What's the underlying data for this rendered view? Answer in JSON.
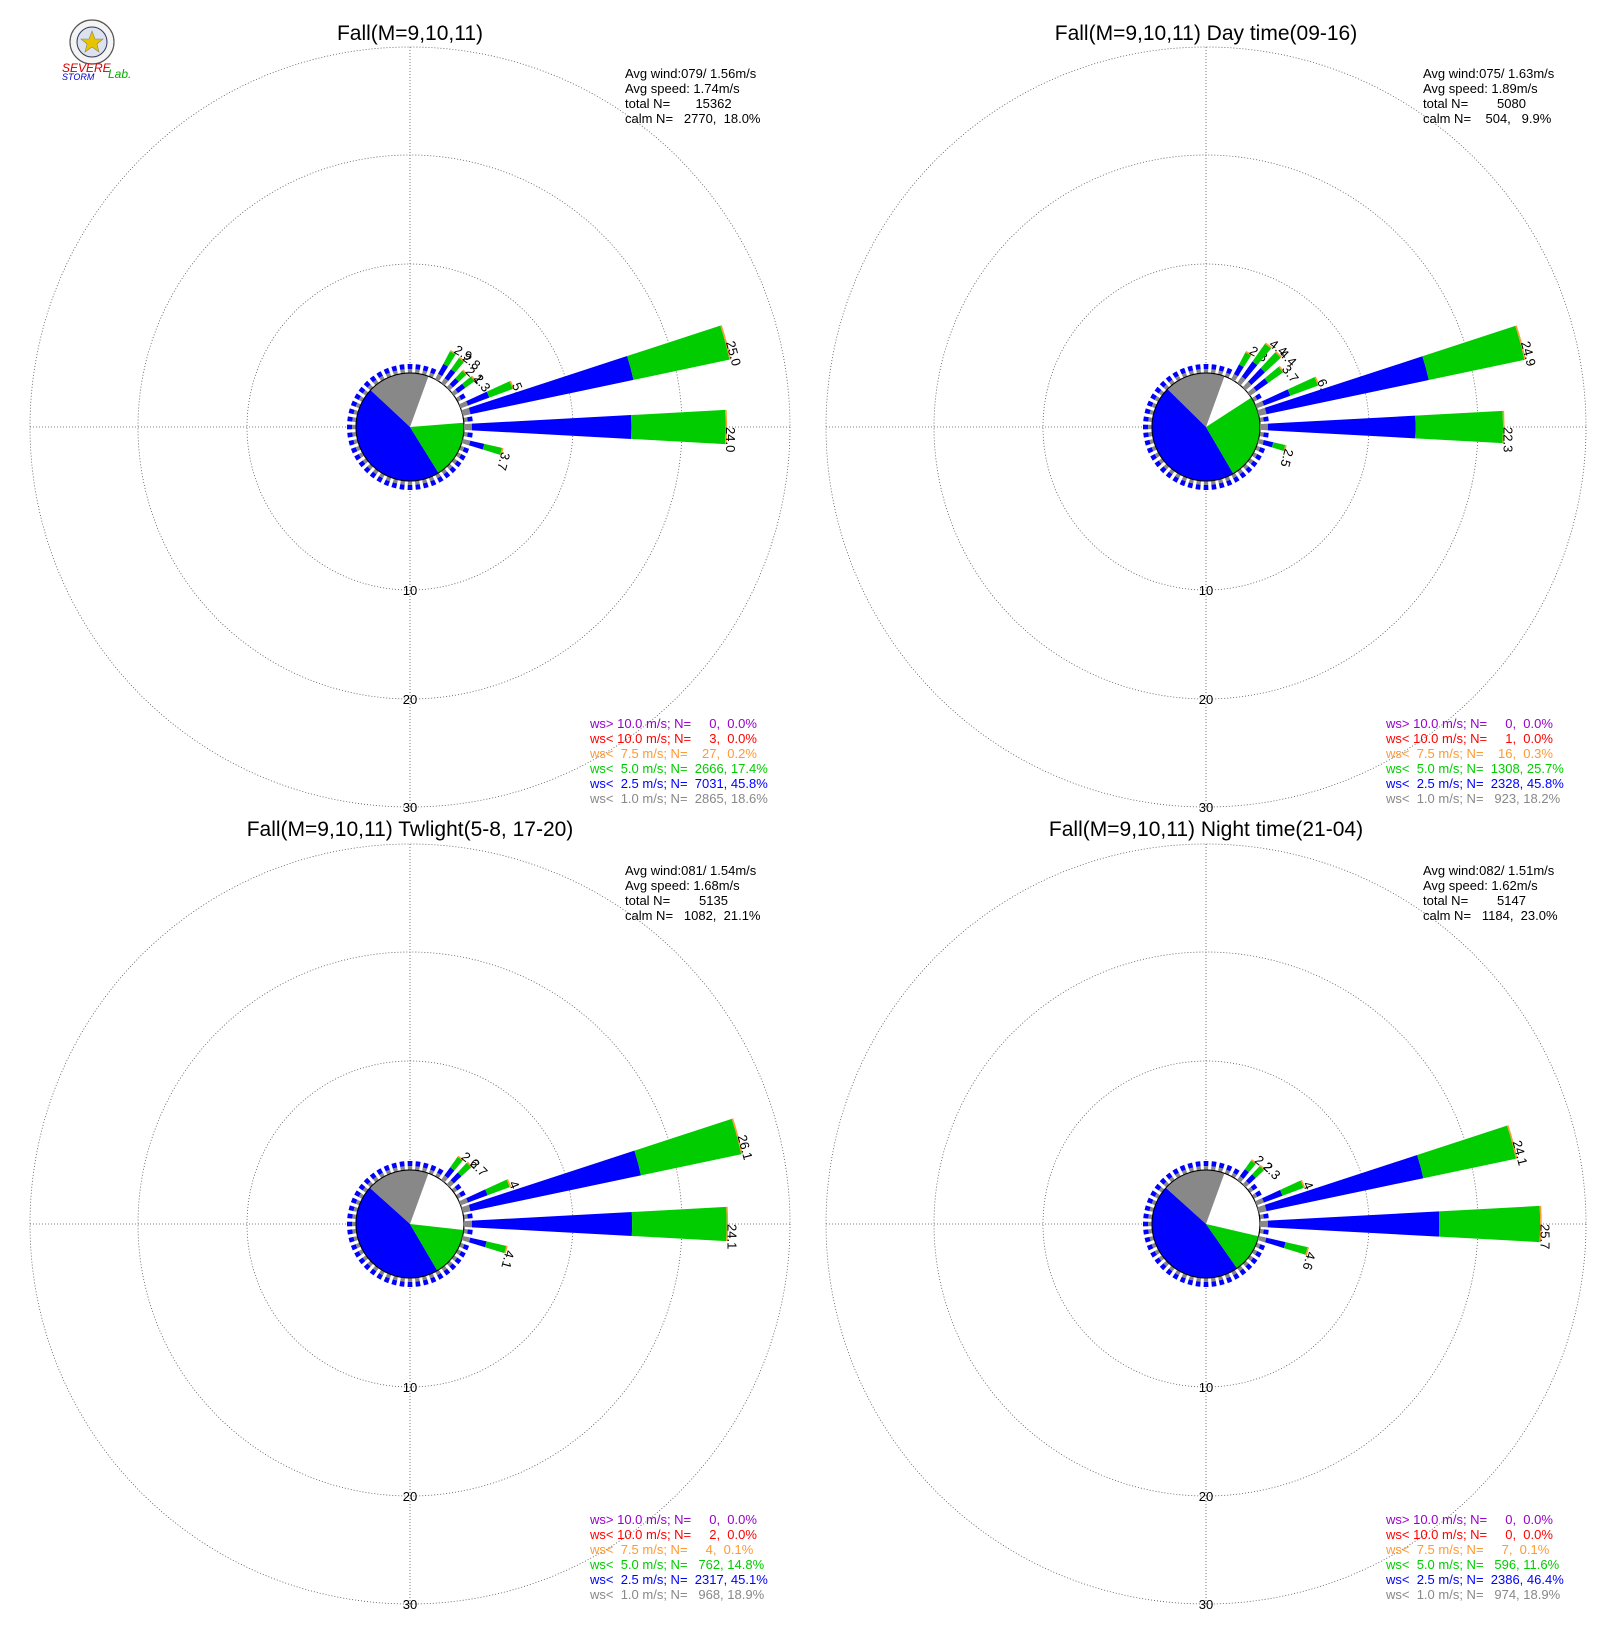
{
  "logo": {
    "text_severe": "SEVERE",
    "text_storm": "STORM",
    "text_lab": "Lab."
  },
  "ring_labels": [
    "10",
    "20",
    "30"
  ],
  "legend_colors": {
    "ws_gt_10": "#9900cc",
    "ws_lt_10": "#ff0000",
    "ws_lt_7_5": "#ff9933",
    "ws_lt_5": "#00cc00",
    "ws_lt_2_5": "#0000ff",
    "ws_lt_1": "#888888"
  },
  "chart_data": [
    {
      "type": "windrose",
      "title": "Fall(M=9,10,11)",
      "stats": {
        "avg_wind": "Avg wind:079/ 1.56m/s",
        "avg_speed": "Avg speed: 1.74m/s",
        "total": "total N=       15362",
        "calm": "calm N=   2770,  18.0%"
      },
      "legend": [
        "ws> 10.0 m/s; N=     0,  0.0%",
        "ws< 10.0 m/s; N=     3,  0.0%",
        "ws<  7.5 m/s; N=    27,  0.2%",
        "ws<  5.0 m/s; N=  2666, 17.4%",
        "ws<  2.5 m/s; N=  7031, 45.8%",
        "ws<  1.0 m/s; N=  2865, 18.6%"
      ],
      "calm_pie_percent": {
        "ws_lt_1": 18.6,
        "ws_lt_2_5": 45.8,
        "ws_lt_5": 17.4,
        "rest": 18.2
      },
      "bars": [
        {
          "dir": 30,
          "total": 2.9,
          "label": "2.9"
        },
        {
          "dir": 37.5,
          "total": 2.8,
          "label": "2.8"
        },
        {
          "dir": 45,
          "total": 2.1,
          "label": "2.1"
        },
        {
          "dir": 52.5,
          "total": 2.3,
          "label": "2.3"
        },
        {
          "dir": 67.5,
          "total": 5.1,
          "label": "5.1"
        },
        {
          "dir": 75,
          "total": 25.0,
          "label": "25.0"
        },
        {
          "dir": 90,
          "total": 24.0,
          "label": "24.0"
        },
        {
          "dir": 105,
          "total": 3.7,
          "label": "3.7"
        }
      ]
    },
    {
      "type": "windrose",
      "title": "Fall(M=9,10,11) Day time(09-16)",
      "stats": {
        "avg_wind": "Avg wind:075/ 1.63m/s",
        "avg_speed": "Avg speed: 1.89m/s",
        "total": "total N=        5080",
        "calm": "calm N=    504,   9.9%"
      },
      "legend": [
        "ws> 10.0 m/s; N=     0,  0.0%",
        "ws< 10.0 m/s; N=     1,  0.0%",
        "ws<  7.5 m/s; N=    16,  0.3%",
        "ws<  5.0 m/s; N=  1308, 25.7%",
        "ws<  2.5 m/s; N=  2328, 45.8%",
        "ws<  1.0 m/s; N=   923, 18.2%"
      ],
      "calm_pie_percent": {
        "ws_lt_1": 18.2,
        "ws_lt_2_5": 45.8,
        "ws_lt_5": 25.7,
        "rest": 10.3
      },
      "bars": [
        {
          "dir": 30,
          "total": 2.8,
          "label": "2.8"
        },
        {
          "dir": 37.5,
          "total": 4.4,
          "label": "4.4"
        },
        {
          "dir": 45,
          "total": 4.4,
          "label": "4.4"
        },
        {
          "dir": 52.5,
          "total": 3.7,
          "label": "3.7"
        },
        {
          "dir": 67.5,
          "total": 6.0,
          "label": "6.0"
        },
        {
          "dir": 75,
          "total": 24.9,
          "label": "24.9"
        },
        {
          "dir": 90,
          "total": 22.3,
          "label": "22.3"
        },
        {
          "dir": 105,
          "total": 2.5,
          "label": "2.5"
        }
      ]
    },
    {
      "type": "windrose",
      "title": "Fall(M=9,10,11) Twlight(5-8, 17-20)",
      "stats": {
        "avg_wind": "Avg wind:081/ 1.54m/s",
        "avg_speed": "Avg speed: 1.68m/s",
        "total": "total N=        5135",
        "calm": "calm N=   1082,  21.1%"
      },
      "legend": [
        "ws> 10.0 m/s; N=     0,  0.0%",
        "ws< 10.0 m/s; N=     2,  0.0%",
        "ws<  7.5 m/s; N=     4,  0.1%",
        "ws<  5.0 m/s; N=   762, 14.8%",
        "ws<  2.5 m/s; N=  2317, 45.1%",
        "ws<  1.0 m/s; N=   968, 18.9%"
      ],
      "calm_pie_percent": {
        "ws_lt_1": 18.9,
        "ws_lt_2_5": 45.1,
        "ws_lt_5": 14.8,
        "rest": 21.2
      },
      "bars": [
        {
          "dir": 37.5,
          "total": 2.6,
          "label": "2.6"
        },
        {
          "dir": 45,
          "total": 2.7,
          "label": "2.7"
        },
        {
          "dir": 67.5,
          "total": 4.8,
          "label": "4.8"
        },
        {
          "dir": 75,
          "total": 26.1,
          "label": "26.1"
        },
        {
          "dir": 90,
          "total": 24.1,
          "label": "24.1"
        },
        {
          "dir": 105,
          "total": 4.1,
          "label": "4.1"
        }
      ]
    },
    {
      "type": "windrose",
      "title": "Fall(M=9,10,11) Night time(21-04)",
      "stats": {
        "avg_wind": "Avg wind:082/ 1.51m/s",
        "avg_speed": "Avg speed: 1.62m/s",
        "total": "total N=        5147",
        "calm": "calm N=   1184,  23.0%"
      },
      "legend": [
        "ws> 10.0 m/s; N=     0,  0.0%",
        "ws< 10.0 m/s; N=     0,  0.0%",
        "ws<  7.5 m/s; N=     7,  0.1%",
        "ws<  5.0 m/s; N=   596, 11.6%",
        "ws<  2.5 m/s; N=  2386, 46.4%",
        "ws<  1.0 m/s; N=   974, 18.9%"
      ],
      "calm_pie_percent": {
        "ws_lt_1": 18.9,
        "ws_lt_2_5": 46.4,
        "ws_lt_5": 11.6,
        "rest": 23.1
      },
      "bars": [
        {
          "dir": 37.5,
          "total": 2.2,
          "label": "2.2"
        },
        {
          "dir": 45,
          "total": 2.3,
          "label": "2.3"
        },
        {
          "dir": 67.5,
          "total": 4.6,
          "label": "4.6"
        },
        {
          "dir": 75,
          "total": 24.1,
          "label": "24.1"
        },
        {
          "dir": 90,
          "total": 25.7,
          "label": "25.7"
        },
        {
          "dir": 105,
          "total": 4.6,
          "label": "4.6"
        }
      ]
    }
  ]
}
